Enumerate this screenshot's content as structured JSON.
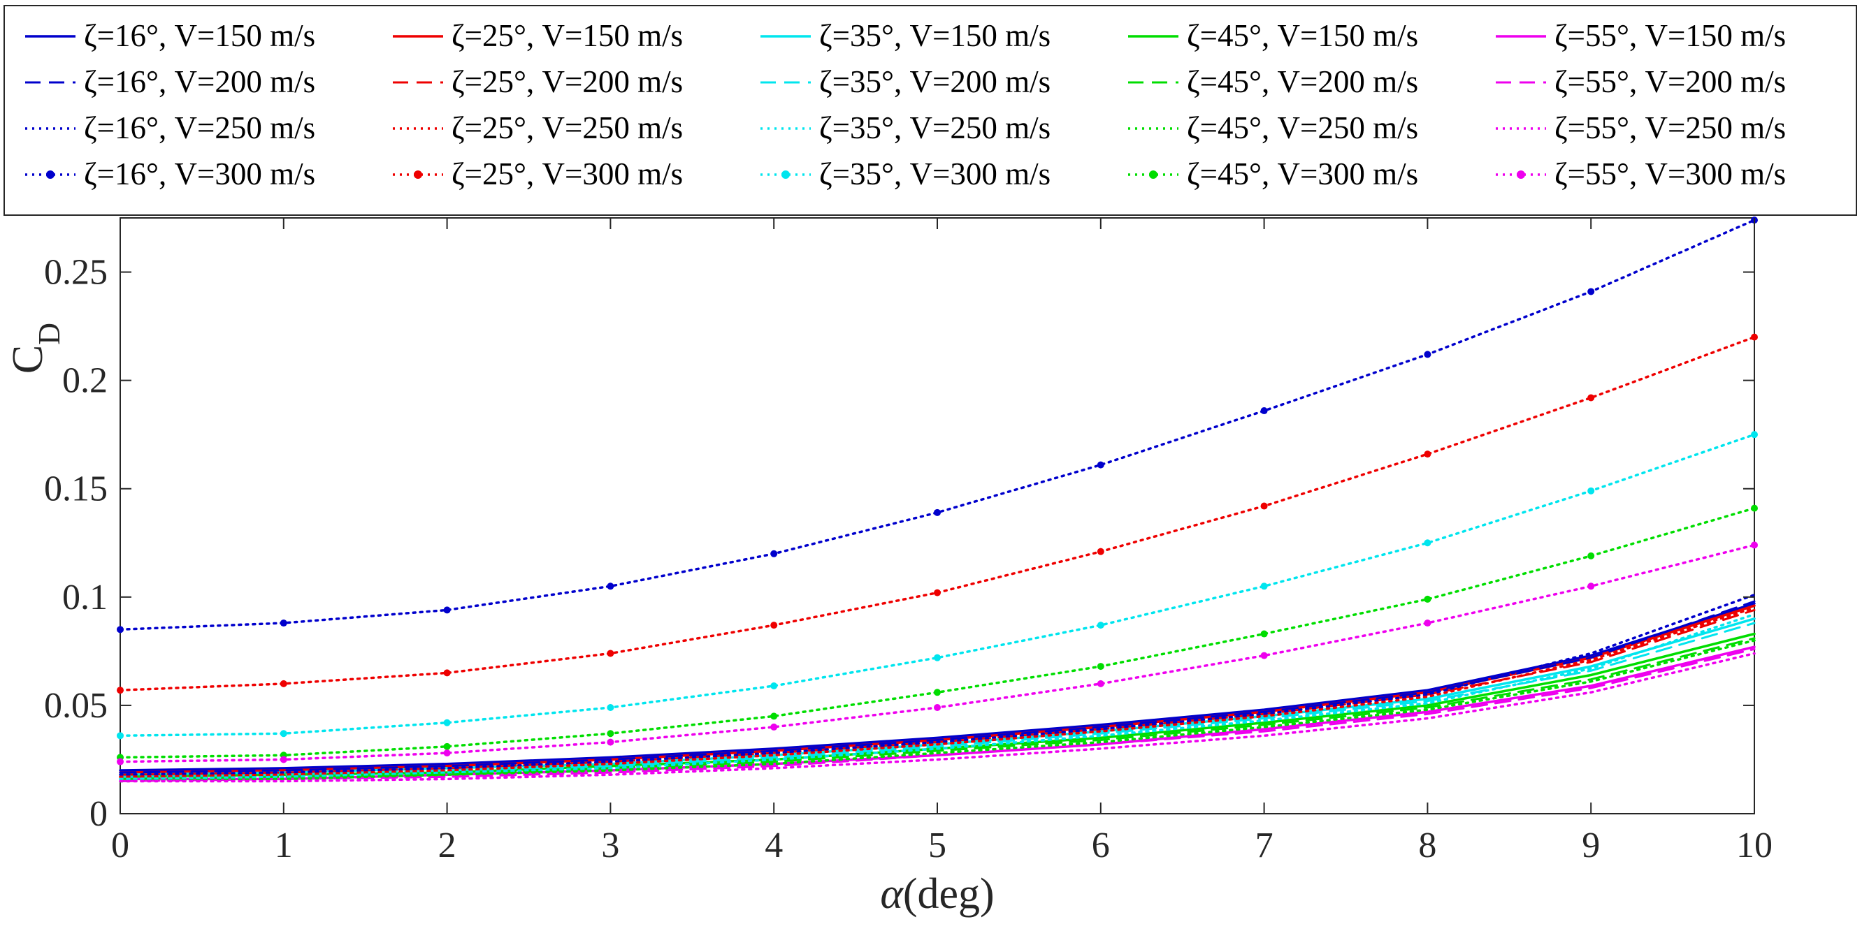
{
  "chart_data": {
    "type": "line",
    "xlabel_symbol": "α",
    "xlabel_unit": "(deg)",
    "ylabel_main": "C",
    "ylabel_sub": "D",
    "xlim": [
      0,
      10
    ],
    "ylim": [
      0,
      0.275
    ],
    "xticks": [
      0,
      1,
      2,
      3,
      4,
      5,
      6,
      7,
      8,
      9,
      10
    ],
    "yticks": [
      0,
      0.05,
      0.1,
      0.15,
      0.2,
      0.25
    ],
    "ytick_labels": [
      "0",
      "0.05",
      "0.1",
      "0.15",
      "0.2",
      "0.25"
    ],
    "grid": false,
    "legend_position": "top, outside plot, 5 columns × 4 rows",
    "x": [
      0,
      1,
      2,
      3,
      4,
      5,
      6,
      7,
      8,
      9,
      10
    ],
    "colors": {
      "16": "#0000cc",
      "25": "#ee0000",
      "35": "#00e5ee",
      "45": "#00dd00",
      "55": "#ee00ee"
    },
    "series": [
      {
        "name": "ζ=16°, V=150 m/s",
        "zeta": "16",
        "style": "solid",
        "values": [
          0.02,
          0.021,
          0.023,
          0.026,
          0.03,
          0.035,
          0.041,
          0.048,
          0.057,
          0.073,
          0.097
        ]
      },
      {
        "name": "ζ=25°, V=150 m/s",
        "zeta": "25",
        "style": "solid",
        "values": [
          0.019,
          0.02,
          0.022,
          0.025,
          0.029,
          0.034,
          0.04,
          0.047,
          0.056,
          0.072,
          0.096
        ]
      },
      {
        "name": "ζ=35°, V=150 m/s",
        "zeta": "35",
        "style": "solid",
        "values": [
          0.018,
          0.019,
          0.021,
          0.023,
          0.027,
          0.032,
          0.038,
          0.045,
          0.053,
          0.068,
          0.09
        ]
      },
      {
        "name": "ζ=45°, V=150 m/s",
        "zeta": "45",
        "style": "solid",
        "values": [
          0.017,
          0.018,
          0.019,
          0.022,
          0.025,
          0.03,
          0.035,
          0.042,
          0.05,
          0.064,
          0.083
        ]
      },
      {
        "name": "ζ=55°, V=150 m/s",
        "zeta": "55",
        "style": "solid",
        "values": [
          0.016,
          0.016,
          0.018,
          0.02,
          0.023,
          0.027,
          0.032,
          0.039,
          0.047,
          0.059,
          0.077
        ]
      },
      {
        "name": "ζ=16°, V=200 m/s",
        "zeta": "16",
        "style": "dashed",
        "values": [
          0.019,
          0.02,
          0.022,
          0.025,
          0.029,
          0.034,
          0.04,
          0.047,
          0.056,
          0.072,
          0.098
        ]
      },
      {
        "name": "ζ=25°, V=200 m/s",
        "zeta": "25",
        "style": "dashed",
        "values": [
          0.018,
          0.019,
          0.021,
          0.024,
          0.028,
          0.033,
          0.039,
          0.046,
          0.055,
          0.07,
          0.094
        ]
      },
      {
        "name": "ζ=35°, V=200 m/s",
        "zeta": "35",
        "style": "dashed",
        "values": [
          0.017,
          0.018,
          0.02,
          0.022,
          0.026,
          0.031,
          0.037,
          0.044,
          0.052,
          0.066,
          0.088
        ]
      },
      {
        "name": "ζ=45°, V=200 m/s",
        "zeta": "45",
        "style": "dashed",
        "values": [
          0.016,
          0.017,
          0.018,
          0.021,
          0.024,
          0.029,
          0.034,
          0.041,
          0.049,
          0.062,
          0.081
        ]
      },
      {
        "name": "ζ=55°, V=200 m/s",
        "zeta": "55",
        "style": "dashed",
        "values": [
          0.015,
          0.016,
          0.017,
          0.019,
          0.022,
          0.027,
          0.032,
          0.038,
          0.046,
          0.058,
          0.076
        ]
      },
      {
        "name": "ζ=16°, V=250 m/s",
        "zeta": "16",
        "style": "dotted",
        "values": [
          0.018,
          0.019,
          0.021,
          0.024,
          0.028,
          0.033,
          0.039,
          0.046,
          0.055,
          0.074,
          0.101
        ]
      },
      {
        "name": "ζ=25°, V=250 m/s",
        "zeta": "25",
        "style": "dotted",
        "values": [
          0.017,
          0.018,
          0.02,
          0.023,
          0.027,
          0.032,
          0.038,
          0.045,
          0.054,
          0.071,
          0.095
        ]
      },
      {
        "name": "ζ=35°, V=250 m/s",
        "zeta": "35",
        "style": "dotted",
        "values": [
          0.016,
          0.017,
          0.019,
          0.021,
          0.025,
          0.03,
          0.036,
          0.043,
          0.051,
          0.067,
          0.092
        ]
      },
      {
        "name": "ζ=45°, V=250 m/s",
        "zeta": "45",
        "style": "dotted",
        "values": [
          0.015,
          0.016,
          0.018,
          0.02,
          0.023,
          0.028,
          0.033,
          0.04,
          0.048,
          0.061,
          0.08
        ]
      },
      {
        "name": "ζ=55°, V=250 m/s",
        "zeta": "55",
        "style": "dotted",
        "values": [
          0.015,
          0.015,
          0.016,
          0.018,
          0.021,
          0.025,
          0.03,
          0.036,
          0.044,
          0.056,
          0.074
        ]
      },
      {
        "name": "ζ=16°, V=300 m/s",
        "zeta": "16",
        "style": "dotted-marker",
        "values": [
          0.085,
          0.088,
          0.094,
          0.105,
          0.12,
          0.139,
          0.161,
          0.186,
          0.212,
          0.241,
          0.274
        ]
      },
      {
        "name": "ζ=25°, V=300 m/s",
        "zeta": "25",
        "style": "dotted-marker",
        "values": [
          0.057,
          0.06,
          0.065,
          0.074,
          0.087,
          0.102,
          0.121,
          0.142,
          0.166,
          0.192,
          0.22
        ]
      },
      {
        "name": "ζ=35°, V=300 m/s",
        "zeta": "35",
        "style": "dotted-marker",
        "values": [
          0.036,
          0.037,
          0.042,
          0.049,
          0.059,
          0.072,
          0.087,
          0.105,
          0.125,
          0.149,
          0.175
        ]
      },
      {
        "name": "ζ=45°, V=300 m/s",
        "zeta": "45",
        "style": "dotted-marker",
        "values": [
          0.026,
          0.027,
          0.031,
          0.037,
          0.045,
          0.056,
          0.068,
          0.083,
          0.099,
          0.119,
          0.141
        ]
      },
      {
        "name": "ζ=55°, V=300 m/s",
        "zeta": "55",
        "style": "dotted-marker",
        "values": [
          0.024,
          0.025,
          0.028,
          0.033,
          0.04,
          0.049,
          0.06,
          0.073,
          0.088,
          0.105,
          0.124
        ]
      }
    ],
    "legend_order": [
      "ζ=16°, V=150 m/s",
      "ζ=25°, V=150 m/s",
      "ζ=35°, V=150 m/s",
      "ζ=45°, V=150 m/s",
      "ζ=55°, V=150 m/s",
      "ζ=16°, V=200 m/s",
      "ζ=25°, V=200 m/s",
      "ζ=35°, V=200 m/s",
      "ζ=45°, V=200 m/s",
      "ζ=55°, V=200 m/s",
      "ζ=16°, V=250 m/s",
      "ζ=25°, V=250 m/s",
      "ζ=35°, V=250 m/s",
      "ζ=45°, V=250 m/s",
      "ζ=55°, V=250 m/s",
      "ζ=16°, V=300 m/s",
      "ζ=25°, V=300 m/s",
      "ζ=35°, V=300 m/s",
      "ζ=45°, V=300 m/s",
      "ζ=55°, V=300 m/s"
    ]
  }
}
